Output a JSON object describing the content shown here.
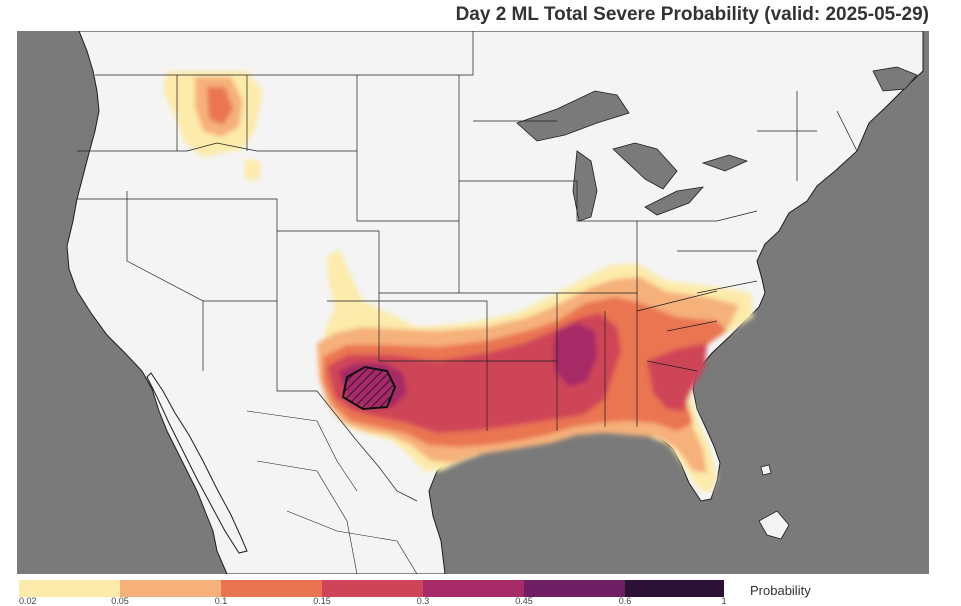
{
  "title": "Day 2 ML Total Severe Probability (valid: 2025-05-29)",
  "legend": {
    "title": "Probability",
    "ticks": [
      "0.02",
      "0.05",
      "0.1",
      "0.15",
      "0.3",
      "0.45",
      "0.6",
      "1"
    ],
    "colors": [
      "#fcebab",
      "#f6b07a",
      "#ea7451",
      "#cf4458",
      "#a52a66",
      "#6f1f63",
      "#2a1135"
    ]
  },
  "colors": {
    "ocean": "#7a7a7a",
    "land": "#f4f4f4",
    "border": "#1e1e1e",
    "hatch_outline": "#111111"
  }
}
